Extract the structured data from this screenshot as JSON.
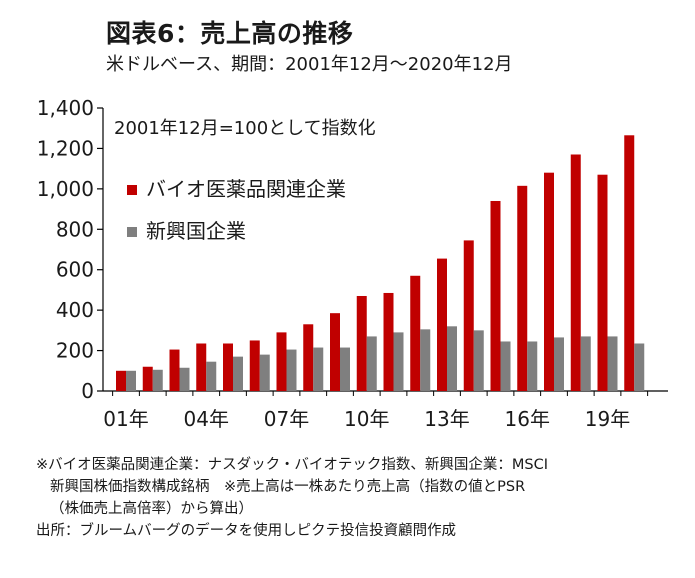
{
  "title": "図表6：売上高の推移",
  "subtitle": "米ドルベース、期間：2001年12月～2020年12月",
  "colors": {
    "biotech": "#c00000",
    "emerging": "#7f7f7f",
    "axis": "#000000"
  },
  "chart_data": {
    "type": "bar",
    "annotation": "2001年12月=100として指数化",
    "years": [
      2001,
      2002,
      2003,
      2004,
      2005,
      2006,
      2007,
      2008,
      2009,
      2010,
      2011,
      2012,
      2013,
      2014,
      2015,
      2016,
      2017,
      2018,
      2019,
      2020
    ],
    "x_tick_labels": [
      "01年",
      "04年",
      "07年",
      "10年",
      "13年",
      "16年",
      "19年"
    ],
    "x_tick_years": [
      2001,
      2004,
      2007,
      2010,
      2013,
      2016,
      2019
    ],
    "ylim": [
      0,
      1400
    ],
    "y_ticks": [
      0,
      200,
      400,
      600,
      800,
      1000,
      1200,
      1400
    ],
    "y_tick_labels": [
      "0",
      "200",
      "400",
      "600",
      "800",
      "1,000",
      "1,200",
      "1,400"
    ],
    "legend_position": "upper-left",
    "grid": false,
    "series": [
      {
        "name": "バイオ医薬品関連企業",
        "color": "#c00000",
        "values": [
          100,
          120,
          205,
          235,
          235,
          250,
          290,
          330,
          385,
          470,
          485,
          570,
          655,
          745,
          940,
          1015,
          1080,
          1170,
          1070,
          1265
        ]
      },
      {
        "name": "新興国企業",
        "color": "#7f7f7f",
        "values": [
          100,
          105,
          115,
          145,
          170,
          180,
          205,
          215,
          215,
          270,
          290,
          305,
          320,
          300,
          245,
          245,
          265,
          270,
          270,
          235
        ]
      }
    ]
  },
  "notes": [
    "※バイオ医薬品関連企業：ナスダック・バイオテック指数、新興国企業：MSCI",
    "新興国株価指数構成銘柄　※売上高は一株あたり売上高（指数の値とPSR",
    "（株価売上高倍率）から算出）",
    "出所：ブルームバーグのデータを使用しピクテ投信投資顧問作成"
  ]
}
